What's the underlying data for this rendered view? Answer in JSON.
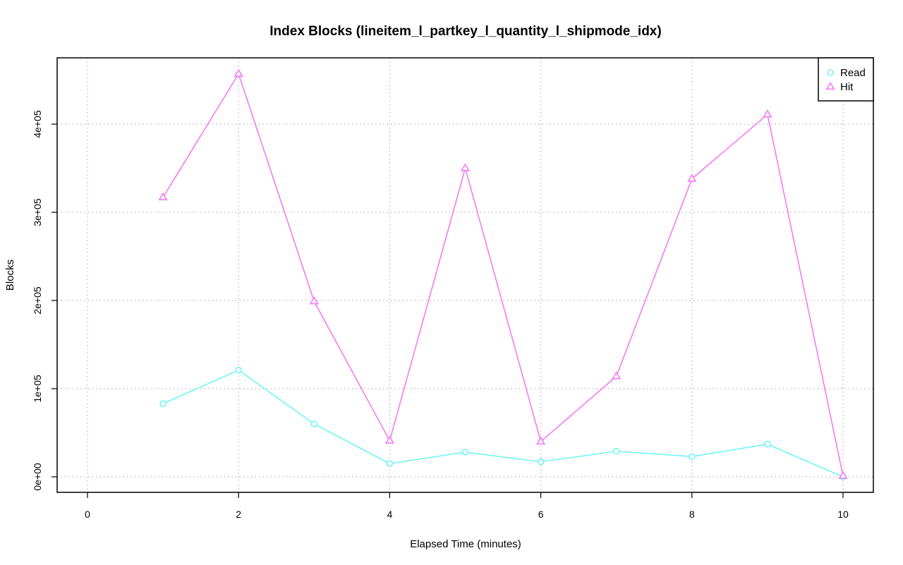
{
  "chart_data": {
    "type": "line",
    "title": "Index Blocks (lineitem_l_partkey_l_quantity_l_shipmode_idx)",
    "xlabel": "Elapsed Time (minutes)",
    "ylabel": "Blocks",
    "xlim": [
      0,
      10
    ],
    "ylim": [
      0,
      460000
    ],
    "x_ticks": [
      0,
      2,
      4,
      6,
      8,
      10
    ],
    "x_tick_labels": [
      "0",
      "2",
      "4",
      "6",
      "8",
      "10"
    ],
    "y_ticks": [
      0,
      100000,
      200000,
      300000,
      400000
    ],
    "y_tick_labels": [
      "0e+00",
      "1e+05",
      "2e+05",
      "3e+05",
      "4e+05"
    ],
    "grid": true,
    "legend_position": "top-right",
    "series": [
      {
        "name": "Read",
        "color": "#6ff5f5",
        "marker": "circle",
        "x": [
          1,
          2,
          3,
          4,
          5,
          6,
          7,
          8,
          9,
          10
        ],
        "y": [
          83000,
          121000,
          60000,
          15000,
          28000,
          17000,
          29000,
          23000,
          37000,
          0
        ]
      },
      {
        "name": "Hit",
        "color": "#f57af5",
        "marker": "triangle",
        "x": [
          1,
          2,
          3,
          4,
          5,
          6,
          7,
          8,
          9,
          10
        ],
        "y": [
          317000,
          457000,
          199000,
          41000,
          350000,
          40000,
          114000,
          338000,
          411000,
          1000
        ]
      }
    ]
  }
}
